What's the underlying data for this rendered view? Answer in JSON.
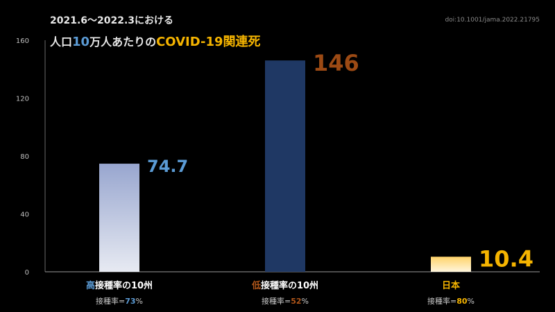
{
  "header": {
    "title_line1": "2021.6〜2022.3における",
    "title_part1": "人口",
    "title_part2": "10",
    "title_part3": "万人あたりの",
    "title_part4": "COVID-19関連死",
    "doi": "doi:10.1001/jama.2022.21795"
  },
  "colors": {
    "blue_accent": "#5b9bd5",
    "orange_accent": "#f5b400",
    "brown_accent": "#9c4a14"
  },
  "chart_data": {
    "type": "bar",
    "categories": [
      "高接種率の10州",
      "低接種率の10州",
      "日本"
    ],
    "values": [
      74.7,
      146,
      10.4
    ],
    "value_labels": [
      "74.7",
      "146",
      "10.4"
    ],
    "yticks": [
      0,
      40,
      80,
      120,
      160
    ],
    "ylim": [
      0,
      160
    ],
    "grid": false,
    "sub_labels": [
      {
        "prefix": "接種率=",
        "value": "73",
        "suffix": "%"
      },
      {
        "prefix": "接種率=",
        "value": "52",
        "suffix": "%"
      },
      {
        "prefix": "接種率=",
        "value": "80",
        "suffix": "%"
      }
    ],
    "category_highlight": [
      "高",
      "低",
      ""
    ],
    "category_rest": [
      "接種率の10州",
      "接種率の10州",
      "日本"
    ]
  }
}
